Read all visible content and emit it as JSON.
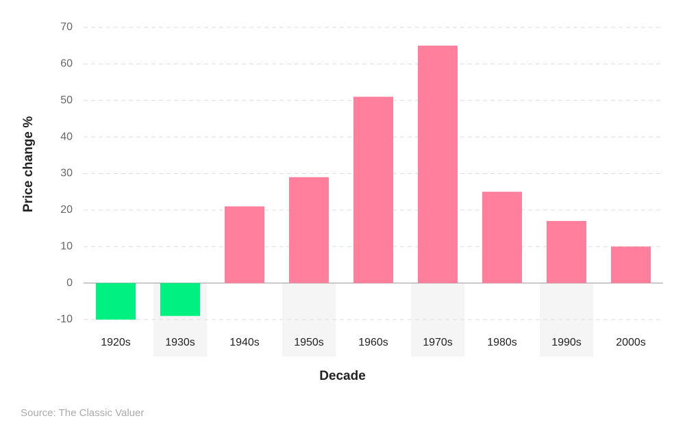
{
  "chart_data": {
    "type": "bar",
    "y_label": "Price change %",
    "x_label": "Decade",
    "source": "Source: The Classic Valuer",
    "categories": [
      "1920s",
      "1930s",
      "1940s",
      "1950s",
      "1960s",
      "1970s",
      "1980s",
      "1990s",
      "2000s"
    ],
    "values": [
      -10,
      -9,
      21,
      29,
      51,
      65,
      25,
      17,
      10
    ],
    "colors": [
      "#00f082",
      "#00f082",
      "#ff7f9c",
      "#ff7f9c",
      "#ff7f9c",
      "#ff7f9c",
      "#ff7f9c",
      "#ff7f9c",
      "#ff7f9c"
    ],
    "ylim": [
      -10,
      70
    ],
    "yticks": [
      -10,
      0,
      10,
      20,
      30,
      40,
      50,
      60,
      70
    ],
    "grid": true
  }
}
